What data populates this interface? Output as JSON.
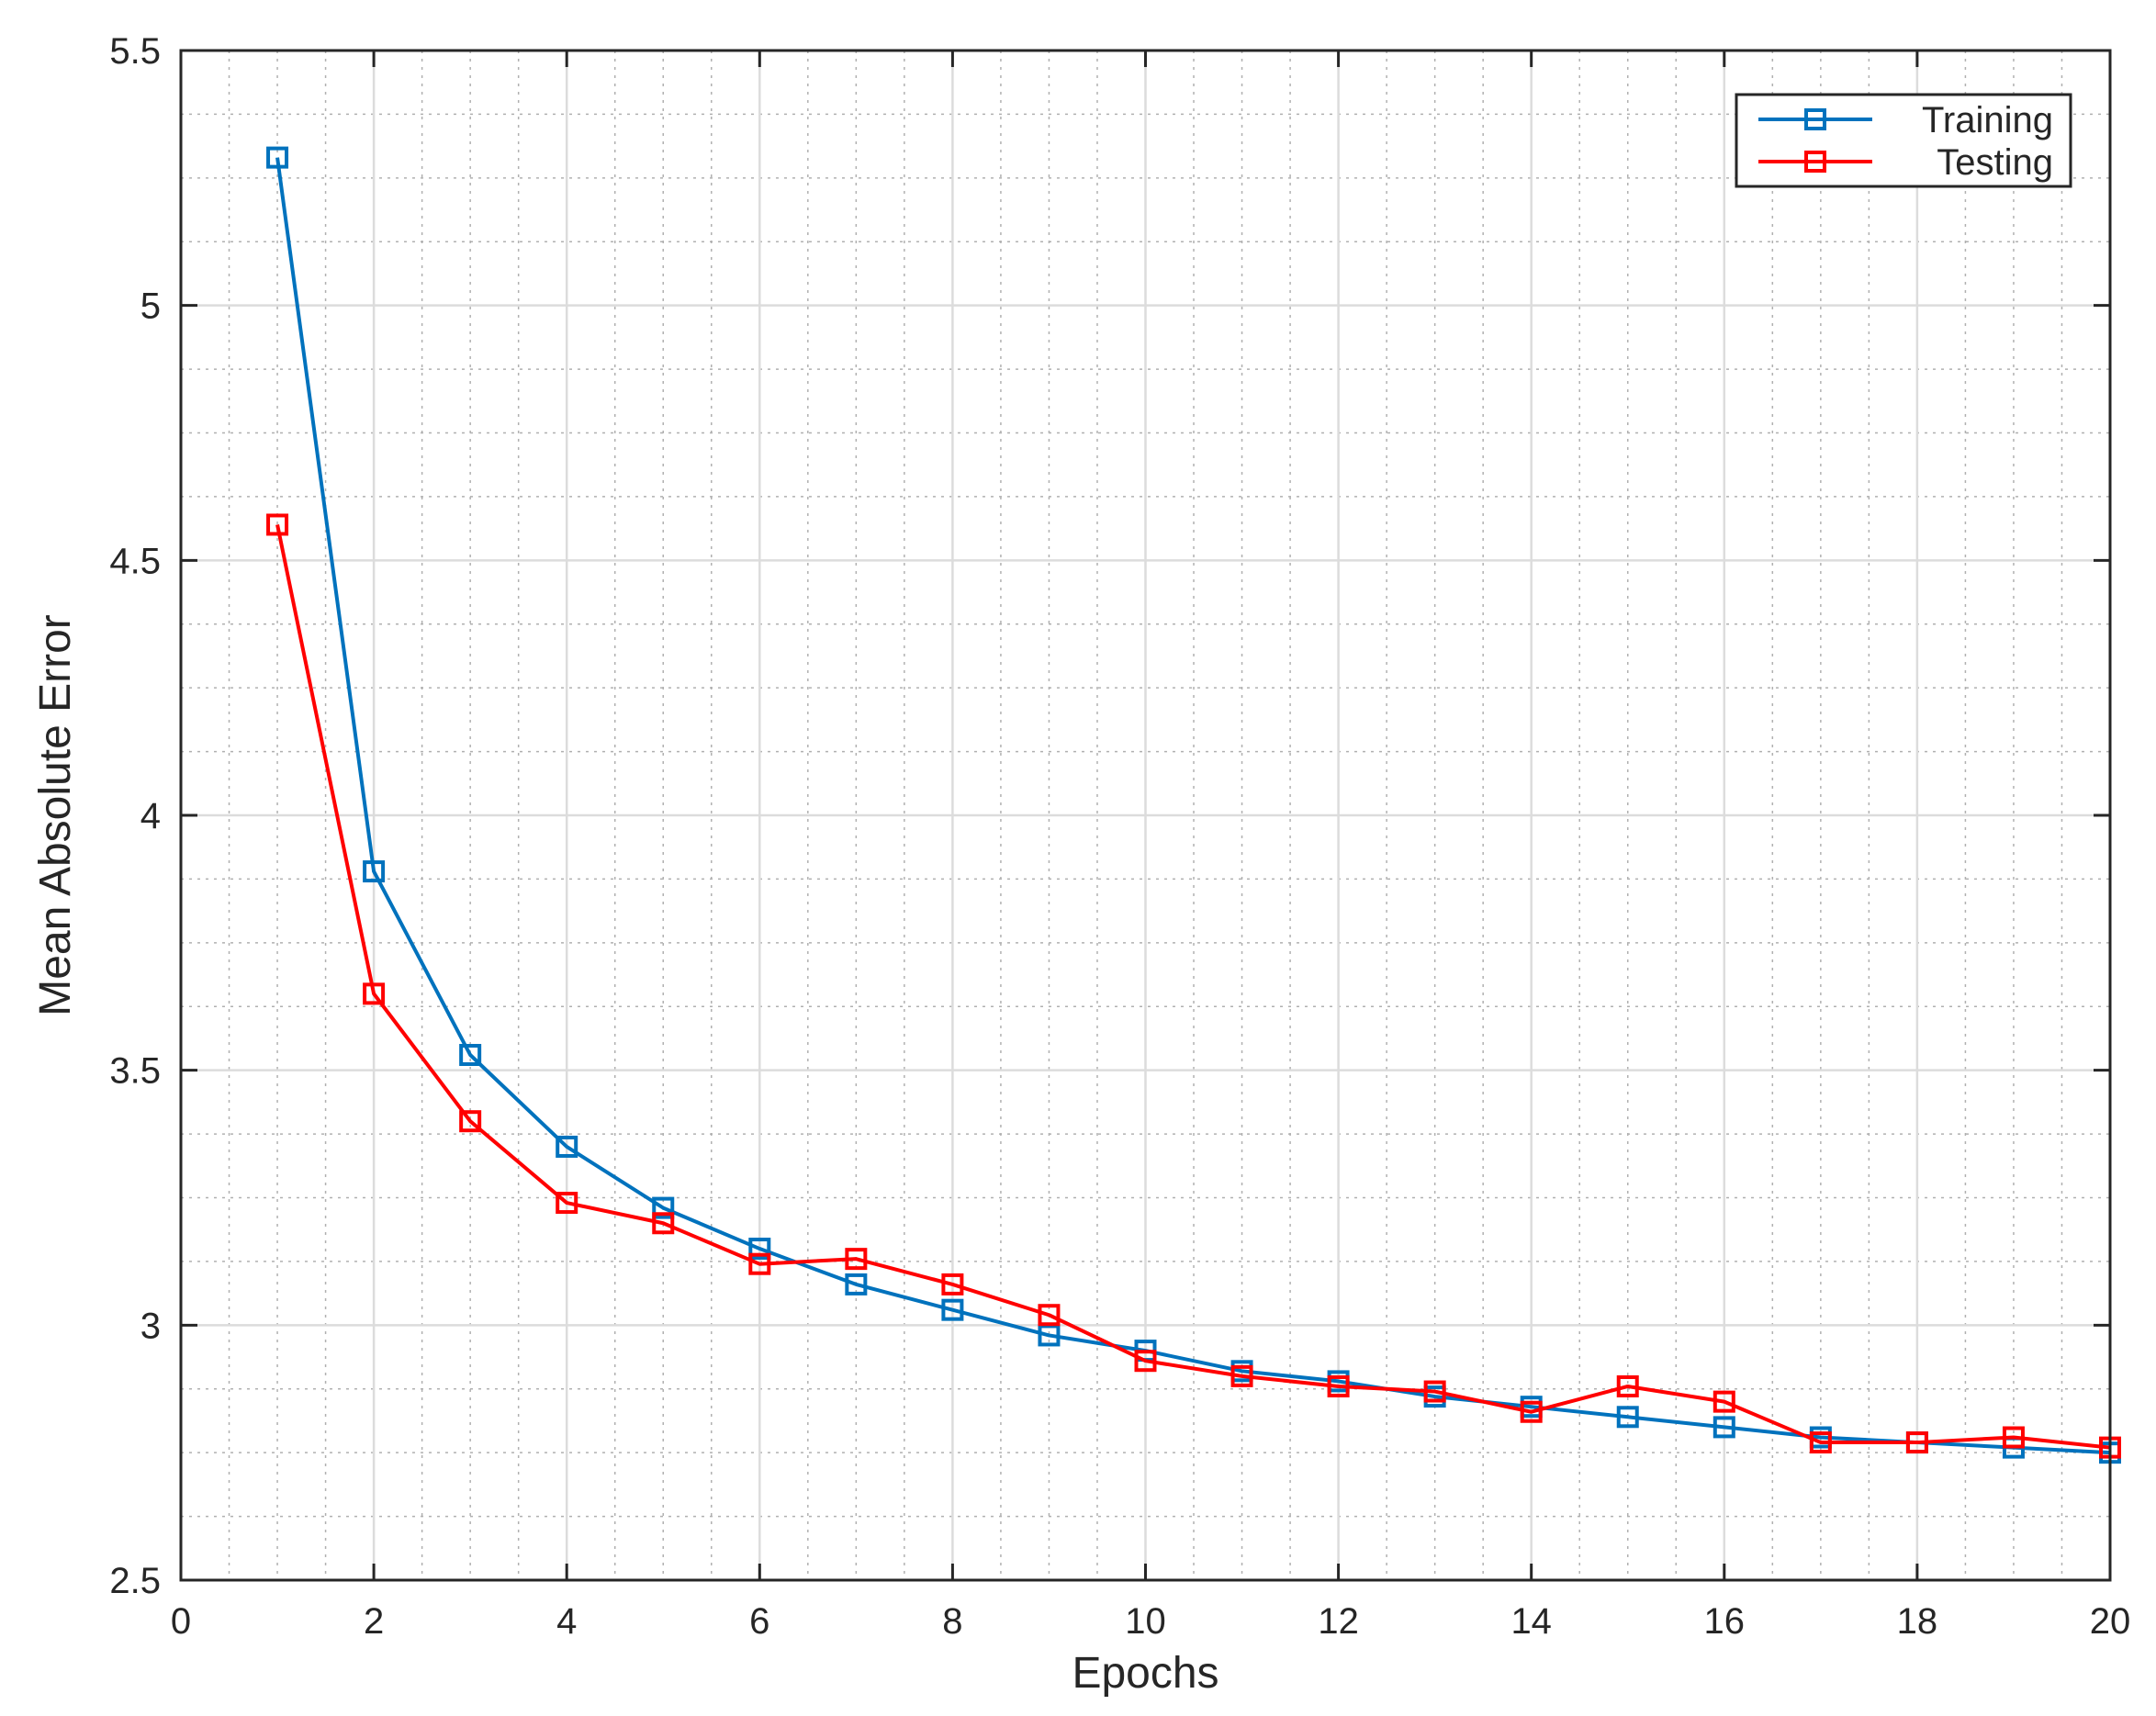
{
  "chart_data": {
    "type": "line",
    "title": "",
    "xlabel": "Epochs",
    "ylabel": "Mean Absolute Error",
    "xlim": [
      0,
      20
    ],
    "ylim": [
      2.5,
      5.5
    ],
    "xticks": [
      "0",
      "2",
      "4",
      "6",
      "8",
      "10",
      "12",
      "14",
      "16",
      "18",
      "20"
    ],
    "yticks": [
      "2.5",
      "3",
      "3.5",
      "4",
      "4.5",
      "5",
      "5.5"
    ],
    "grid": true,
    "minor_grid": true,
    "legend_position": "top-right",
    "x": [
      1,
      2,
      3,
      4,
      5,
      6,
      7,
      8,
      9,
      10,
      11,
      12,
      13,
      14,
      15,
      16,
      17,
      18,
      19,
      20
    ],
    "series": [
      {
        "name": "Training",
        "color": "#0072bd",
        "marker": "square",
        "values": [
          5.29,
          3.89,
          3.53,
          3.35,
          3.23,
          3.15,
          3.08,
          3.03,
          2.98,
          2.95,
          2.91,
          2.89,
          2.86,
          2.84,
          2.82,
          2.8,
          2.78,
          2.77,
          2.76,
          2.75
        ]
      },
      {
        "name": "Testing",
        "color": "#ff0000",
        "marker": "square",
        "values": [
          4.57,
          3.65,
          3.4,
          3.24,
          3.2,
          3.12,
          3.13,
          3.08,
          3.02,
          2.93,
          2.9,
          2.88,
          2.87,
          2.83,
          2.88,
          2.85,
          2.77,
          2.77,
          2.78,
          2.76
        ]
      }
    ]
  }
}
